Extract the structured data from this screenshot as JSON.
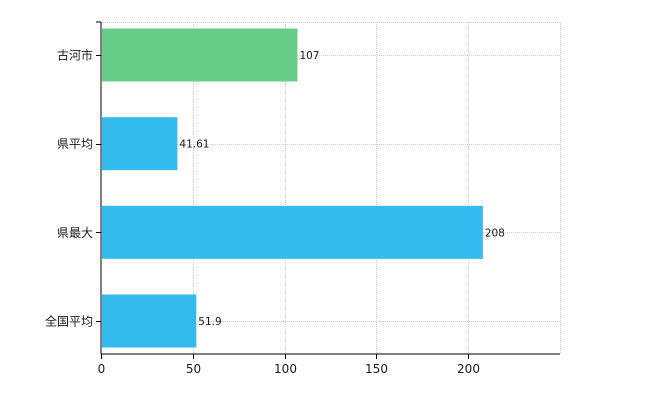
{
  "chart_data": {
    "type": "bar",
    "orientation": "horizontal",
    "categories": [
      "古河市",
      "県平均",
      "県最大",
      "全国平均"
    ],
    "values": [
      107,
      41.61,
      208,
      51.9
    ],
    "value_labels": [
      "107",
      "41.61",
      "208",
      "51.9"
    ],
    "bar_colors": [
      "#66cc88",
      "#33bbee",
      "#33bbee",
      "#33bbee"
    ],
    "xlim": [
      0,
      250
    ],
    "xticks": [
      0,
      50,
      100,
      150,
      200
    ],
    "grid": true,
    "title": "",
    "xlabel": "",
    "ylabel": ""
  },
  "colors": {
    "highlight_bar": "#66cc88",
    "default_bar": "#33bbee",
    "grid": "#d0d0d0",
    "axis": "#000000"
  }
}
